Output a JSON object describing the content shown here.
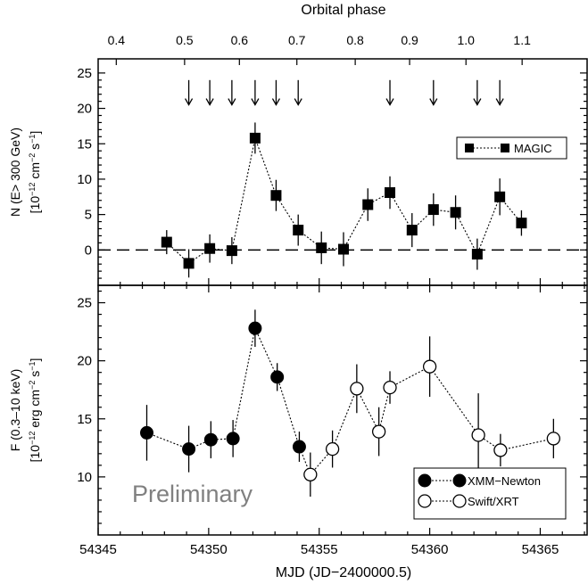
{
  "chart_data": [
    {
      "panel": "top",
      "type": "scatter",
      "top_axis": {
        "label": "Orbital phase",
        "ticks": [
          {
            "label": "0.4",
            "mjd": 54345.82
          },
          {
            "label": "0.5",
            "mjd": 54348.91
          },
          {
            "label": "0.6",
            "mjd": 54351.39
          },
          {
            "label": "0.7",
            "mjd": 54353.99
          },
          {
            "label": "0.8",
            "mjd": 54356.63
          },
          {
            "label": "0.9",
            "mjd": 54359.09
          },
          {
            "label": "1.0",
            "mjd": 54361.64
          },
          {
            "label": "1.1",
            "mjd": 54364.18
          }
        ]
      },
      "ylabel_line1": "N (E> 300 GeV)",
      "ylabel_line2": "[10^-12 cm^-2 s^-1]",
      "ylim": [
        -5,
        27
      ],
      "yticks": [
        "0",
        "5",
        "10",
        "15",
        "20",
        "25"
      ],
      "baseline": 0,
      "upper_limit_mjd": [
        54349.1,
        54350.05,
        54351.05,
        54352.1,
        54353.05,
        54354.05,
        54358.2,
        54360.17,
        54362.15,
        54363.17
      ],
      "series": [
        {
          "name": "MAGIC",
          "marker": "filled-square",
          "points": [
            {
              "x": 54348.1,
              "y": 1.1,
              "err": 1.7
            },
            {
              "x": 54349.1,
              "y": -1.9,
              "err": 2.0
            },
            {
              "x": 54350.05,
              "y": 0.2,
              "err": 2.0
            },
            {
              "x": 54351.05,
              "y": -0.1,
              "err": 1.9
            },
            {
              "x": 54352.1,
              "y": 15.8,
              "err": 2.2
            },
            {
              "x": 54353.05,
              "y": 7.7,
              "err": 2.2
            },
            {
              "x": 54354.05,
              "y": 2.8,
              "err": 2.2
            },
            {
              "x": 54355.1,
              "y": 0.3,
              "err": 2.3
            },
            {
              "x": 54356.1,
              "y": 0.1,
              "err": 2.4
            },
            {
              "x": 54357.2,
              "y": 6.4,
              "err": 2.3
            },
            {
              "x": 54358.2,
              "y": 8.1,
              "err": 2.3
            },
            {
              "x": 54359.2,
              "y": 2.8,
              "err": 2.4
            },
            {
              "x": 54360.17,
              "y": 5.7,
              "err": 2.3
            },
            {
              "x": 54361.17,
              "y": 5.3,
              "err": 2.4
            },
            {
              "x": 54362.15,
              "y": -0.6,
              "err": 2.2
            },
            {
              "x": 54363.17,
              "y": 7.5,
              "err": 2.6
            },
            {
              "x": 54364.15,
              "y": 3.8,
              "err": 1.8
            }
          ]
        }
      ]
    },
    {
      "panel": "bottom",
      "type": "scatter",
      "xlabel": "MJD (JD−2400000.5)",
      "xlim": [
        54345,
        54367.12
      ],
      "xticks": [
        "54345",
        "54350",
        "54355",
        "54360",
        "54365"
      ],
      "ylabel_line1": "F (0.3–10 keV)",
      "ylabel_line2": "[10^-12 erg cm^-2 s^-1]",
      "ylim": [
        5,
        26.5
      ],
      "yticks": [
        "10",
        "15",
        "20",
        "25"
      ],
      "annotation": "Preliminary",
      "series": [
        {
          "name": "XMM−Newton",
          "marker": "filled-circle",
          "points": [
            {
              "x": 54347.2,
              "y": 13.8,
              "err": 2.4
            },
            {
              "x": 54349.1,
              "y": 12.4,
              "err": 2.0
            },
            {
              "x": 54350.1,
              "y": 13.2,
              "err": 1.6
            },
            {
              "x": 54351.1,
              "y": 13.3,
              "err": 1.6
            },
            {
              "x": 54352.1,
              "y": 22.8,
              "err": 1.6
            },
            {
              "x": 54353.1,
              "y": 18.6,
              "err": 1.2
            },
            {
              "x": 54354.1,
              "y": 12.6,
              "err": 1.3
            }
          ]
        },
        {
          "name": "Swift/XRT",
          "marker": "open-circle",
          "points": [
            {
              "x": 54354.6,
              "y": 10.2,
              "err": 1.9
            },
            {
              "x": 54355.6,
              "y": 12.4,
              "err": 1.6
            },
            {
              "x": 54356.7,
              "y": 17.6,
              "err": 2.1
            },
            {
              "x": 54357.7,
              "y": 13.9,
              "err": 2.1
            },
            {
              "x": 54358.2,
              "y": 17.7,
              "err": 1.4
            },
            {
              "x": 54360.0,
              "y": 19.5,
              "err": 2.6
            },
            {
              "x": 54362.2,
              "y": 13.6,
              "err": 3.6
            },
            {
              "x": 54363.2,
              "y": 12.3,
              "err": 1.4
            },
            {
              "x": 54365.6,
              "y": 13.3,
              "err": 1.7
            }
          ]
        }
      ]
    }
  ]
}
